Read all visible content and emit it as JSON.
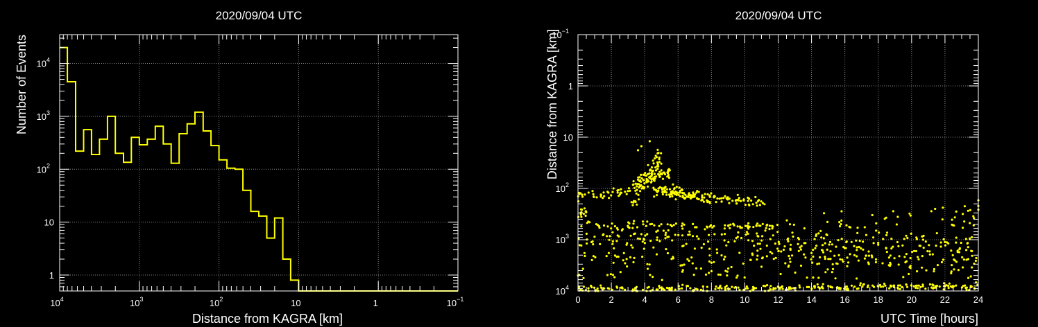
{
  "colors": {
    "background": "#000000",
    "axes": "#ffffff",
    "grid": "#8a8a8a",
    "series": "#ffff00"
  },
  "chart_data": [
    {
      "type": "bar",
      "subtype": "histogram-step",
      "title": "2020/09/04 UTC",
      "xlabel": "Distance from KAGRA [km]",
      "ylabel": "Number of Events",
      "x_scale": "log-reversed",
      "y_scale": "log",
      "xlim": [
        10000,
        0.1
      ],
      "ylim": [
        0.5,
        35000
      ],
      "grid": true,
      "x_tick_labels": [
        {
          "v": 10000,
          "base": "10",
          "exp": "4"
        },
        {
          "v": 1000,
          "base": "10",
          "exp": "3"
        },
        {
          "v": 100,
          "base": "10",
          "exp": "2"
        },
        {
          "v": 10,
          "base": "10",
          "exp": ""
        },
        {
          "v": 1,
          "base": "1",
          "exp": ""
        },
        {
          "v": 0.1,
          "base": "10",
          "exp": "−1"
        }
      ],
      "y_tick_labels": [
        {
          "v": 10000,
          "base": "10",
          "exp": "4"
        },
        {
          "v": 1000,
          "base": "10",
          "exp": "3"
        },
        {
          "v": 100,
          "base": "10",
          "exp": "2"
        },
        {
          "v": 10,
          "base": "10",
          "exp": ""
        },
        {
          "v": 1,
          "base": "1",
          "exp": ""
        }
      ],
      "bin_edges": [
        10000,
        8000,
        6310,
        5010,
        3980,
        3160,
        2510,
        2000,
        1580,
        1260,
        1000,
        794,
        631,
        501,
        398,
        316,
        251,
        200,
        158,
        126,
        100,
        79.4,
        63.1,
        50.1,
        39.8,
        31.6,
        25.1,
        20.0,
        15.8,
        12.6,
        10.0,
        0.1
      ],
      "counts": [
        20000,
        4500,
        220,
        560,
        190,
        370,
        1000,
        200,
        135,
        400,
        290,
        370,
        650,
        300,
        130,
        470,
        720,
        1200,
        530,
        280,
        150,
        105,
        100,
        40,
        16,
        13,
        5,
        12,
        2,
        0.8,
        0.001
      ]
    },
    {
      "type": "scatter",
      "title": "2020/09/04 UTC",
      "xlabel": "UTC Time [hours]",
      "ylabel": "Distance from KAGRA [km]",
      "x_scale": "linear",
      "y_scale": "log-reversed",
      "xlim": [
        0,
        24
      ],
      "ylim": [
        0.1,
        10000
      ],
      "grid": true,
      "x_ticks": [
        0,
        2,
        4,
        6,
        8,
        10,
        12,
        14,
        16,
        18,
        20,
        22,
        24
      ],
      "y_tick_labels": [
        {
          "v": 0.1,
          "base": "10",
          "exp": "−1"
        },
        {
          "v": 1,
          "base": "1",
          "exp": ""
        },
        {
          "v": 10,
          "base": "10",
          "exp": ""
        },
        {
          "v": 100,
          "base": "10",
          "exp": "2"
        },
        {
          "v": 1000,
          "base": "10",
          "exp": "3"
        },
        {
          "v": 10000,
          "base": "10",
          "exp": "4"
        }
      ],
      "bands": [
        {
          "x0": 0,
          "x1": 24,
          "y0": 9200,
          "y1": 8200,
          "n": 260,
          "spread": 0.03
        },
        {
          "x0": 0,
          "x1": 24,
          "y0": 2300,
          "y1": 2300,
          "n": 120,
          "spread": 0.12
        },
        {
          "x0": 0,
          "x1": 24,
          "y0": 4300,
          "y1": 4300,
          "n": 70,
          "spread": 0.12
        },
        {
          "x0": 0,
          "x1": 24,
          "y0": 1200,
          "y1": 1200,
          "n": 90,
          "spread": 0.12
        },
        {
          "x0": 0,
          "x1": 12,
          "y0": 510,
          "y1": 560,
          "n": 90,
          "spread": 0.04
        },
        {
          "x0": 0,
          "x1": 12,
          "y0": 880,
          "y1": 880,
          "n": 70,
          "spread": 0.07
        },
        {
          "x0": 12,
          "x1": 24,
          "y0": 680,
          "y1": 360,
          "n": 60,
          "spread": 0.15
        },
        {
          "x0": 12,
          "x1": 24,
          "y0": 1500,
          "y1": 1500,
          "n": 80,
          "spread": 0.15
        },
        {
          "x0": 0,
          "x1": 3.5,
          "y0": 145,
          "y1": 115,
          "n": 40,
          "spread": 0.05
        },
        {
          "x0": 3.2,
          "x1": 5,
          "y0": 180,
          "y1": 25,
          "n": 70,
          "spread": 0.15
        },
        {
          "x0": 3.2,
          "x1": 5.5,
          "y0": 80,
          "y1": 50,
          "n": 55,
          "spread": 0.06
        },
        {
          "x0": 4.5,
          "x1": 11.2,
          "y0": 110,
          "y1": 195,
          "n": 120,
          "spread": 0.05
        },
        {
          "x0": 5,
          "x1": 8,
          "y0": 100,
          "y1": 170,
          "n": 45,
          "spread": 0.05
        },
        {
          "x0": 0,
          "x1": 0.6,
          "y0": 300,
          "y1": 300,
          "n": 14,
          "spread": 0.05
        }
      ],
      "points": [
        {
          "x": 3.6,
          "y": 18
        },
        {
          "x": 3.8,
          "y": 15
        },
        {
          "x": 4.3,
          "y": 12
        },
        {
          "x": 4.6,
          "y": 26
        },
        {
          "x": 4.2,
          "y": 35
        },
        {
          "x": 4.5,
          "y": 45
        },
        {
          "x": 24,
          "y": 170
        },
        {
          "x": 24,
          "y": 220
        },
        {
          "x": 24,
          "y": 260
        }
      ]
    }
  ]
}
